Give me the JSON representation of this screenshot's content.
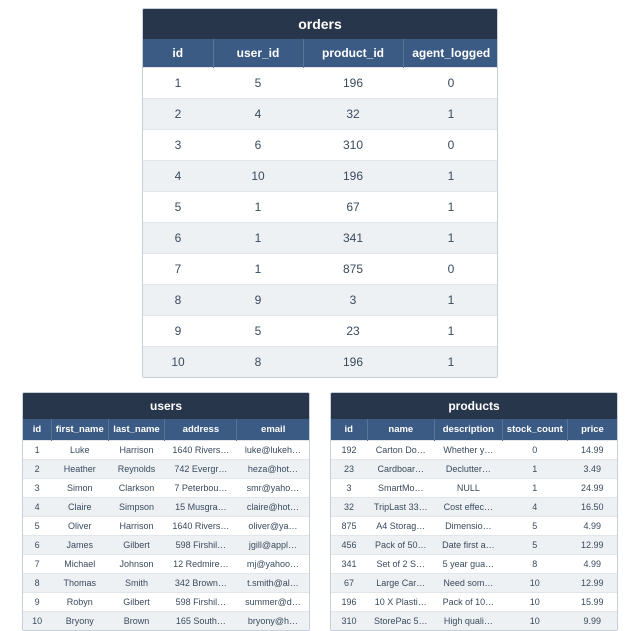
{
  "colors": {
    "title_bg": "#27364b",
    "header_bg": "#3b5b84",
    "row_alt_bg": "#eef1f4",
    "border": "#c7cfd8",
    "text": "#3a4a5c"
  },
  "orders": {
    "title": "orders",
    "columns": [
      "id",
      "user_id",
      "product_id",
      "agent_logged"
    ],
    "rows": [
      [
        "1",
        "5",
        "196",
        "0"
      ],
      [
        "2",
        "4",
        "32",
        "1"
      ],
      [
        "3",
        "6",
        "310",
        "0"
      ],
      [
        "4",
        "10",
        "196",
        "1"
      ],
      [
        "5",
        "1",
        "67",
        "1"
      ],
      [
        "6",
        "1",
        "341",
        "1"
      ],
      [
        "7",
        "1",
        "875",
        "0"
      ],
      [
        "8",
        "9",
        "3",
        "1"
      ],
      [
        "9",
        "5",
        "23",
        "1"
      ],
      [
        "10",
        "8",
        "196",
        "1"
      ]
    ]
  },
  "users": {
    "title": "users",
    "columns": [
      "id",
      "first_name",
      "last_name",
      "address",
      "email"
    ],
    "rows": [
      [
        "1",
        "Luke",
        "Harrison",
        "1640 Rivers…",
        "luke@lukeh…"
      ],
      [
        "2",
        "Heather",
        "Reynolds",
        "742 Evergr…",
        "heza@hot…"
      ],
      [
        "3",
        "Simon",
        "Clarkson",
        "7 Peterbou…",
        "smr@yaho…"
      ],
      [
        "4",
        "Claire",
        "Simpson",
        "15 Musgra…",
        "claire@hot…"
      ],
      [
        "5",
        "Oliver",
        "Harrison",
        "1640 Rivers…",
        "oliver@ya…"
      ],
      [
        "6",
        "James",
        "Gilbert",
        "598 Firshil…",
        "jgill@appl…"
      ],
      [
        "7",
        "Michael",
        "Johnson",
        "12 Redmire…",
        "mj@yahoo…"
      ],
      [
        "8",
        "Thomas",
        "Smith",
        "342 Brown…",
        "t.smith@al…"
      ],
      [
        "9",
        "Robyn",
        "Gilbert",
        "598 Firshil…",
        "summer@d…"
      ],
      [
        "10",
        "Bryony",
        "Brown",
        "165 South…",
        "bryony@h…"
      ]
    ]
  },
  "products": {
    "title": "products",
    "columns": [
      "id",
      "name",
      "description",
      "stock_count",
      "price"
    ],
    "rows": [
      [
        "192",
        "Carton Do…",
        "Whether y…",
        "0",
        "14.99"
      ],
      [
        "23",
        "Cardboar…",
        "Declutter…",
        "1",
        "3.49"
      ],
      [
        "3",
        "SmartMo…",
        "NULL",
        "1",
        "24.99"
      ],
      [
        "32",
        "TripLast 33…",
        "Cost effec…",
        "4",
        "16.50"
      ],
      [
        "875",
        "A4 Storag…",
        "Dimensio…",
        "5",
        "4.99"
      ],
      [
        "456",
        "Pack of 50…",
        "Date first a…",
        "5",
        "12.99"
      ],
      [
        "341",
        "Set of 2 S…",
        "5 year gua…",
        "8",
        "4.99"
      ],
      [
        "67",
        "Large Car…",
        "Need som…",
        "10",
        "12.99"
      ],
      [
        "196",
        "10 X Plasti…",
        "Pack of 10…",
        "10",
        "15.99"
      ],
      [
        "310",
        "StorePac 5…",
        "High quali…",
        "10",
        "9.99"
      ]
    ]
  }
}
